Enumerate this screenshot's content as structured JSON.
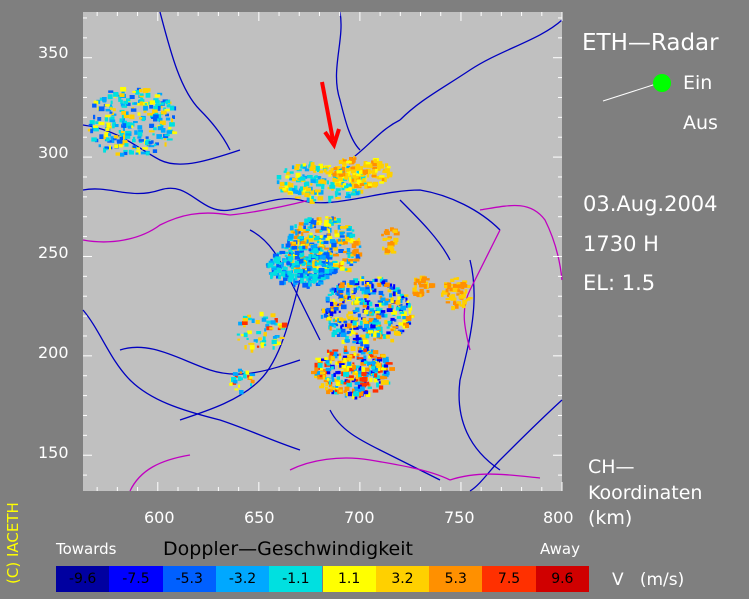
{
  "title": "ETH—Radar",
  "status": {
    "on_label": "Ein",
    "off_label": "Aus",
    "state": "on",
    "indicator_color": "#00ff00"
  },
  "date": "03.Aug.2004",
  "time": "1730  H",
  "elevation": "EL:  1.5",
  "coordinates_label": [
    "CH—",
    "Koordinaten",
    "(km)"
  ],
  "legend": {
    "title": "Doppler—Geschwindigkeit",
    "towards_label": "Towards",
    "away_label": "Away",
    "unit": "V   (m/s)",
    "bins": [
      {
        "value": "-9.6",
        "color": "#0000a0"
      },
      {
        "value": "-7.5",
        "color": "#0000ff"
      },
      {
        "value": "-5.3",
        "color": "#0060ff"
      },
      {
        "value": "-3.2",
        "color": "#00a8ff"
      },
      {
        "value": "-1.1",
        "color": "#00e0e0"
      },
      {
        "value": "1.1",
        "color": "#ffff00"
      },
      {
        "value": "3.2",
        "color": "#ffd000"
      },
      {
        "value": "5.3",
        "color": "#ff9000"
      },
      {
        "value": "7.5",
        "color": "#ff3000"
      },
      {
        "value": "9.6",
        "color": "#d00000"
      }
    ]
  },
  "axes": {
    "x_ticks": [
      "600",
      "650",
      "700",
      "750",
      "800"
    ],
    "y_ticks": [
      "350",
      "300",
      "250",
      "200",
      "150"
    ],
    "x_range": [
      563,
      800
    ],
    "y_range": [
      132,
      373
    ]
  },
  "copyright": "(C)  IACETH",
  "colors": {
    "plot_bg": "#c0c0c0",
    "background": "#7f7f7f",
    "rivers": "#0000c0",
    "borders": "#c000c0",
    "arrow": "#ff0000"
  }
}
